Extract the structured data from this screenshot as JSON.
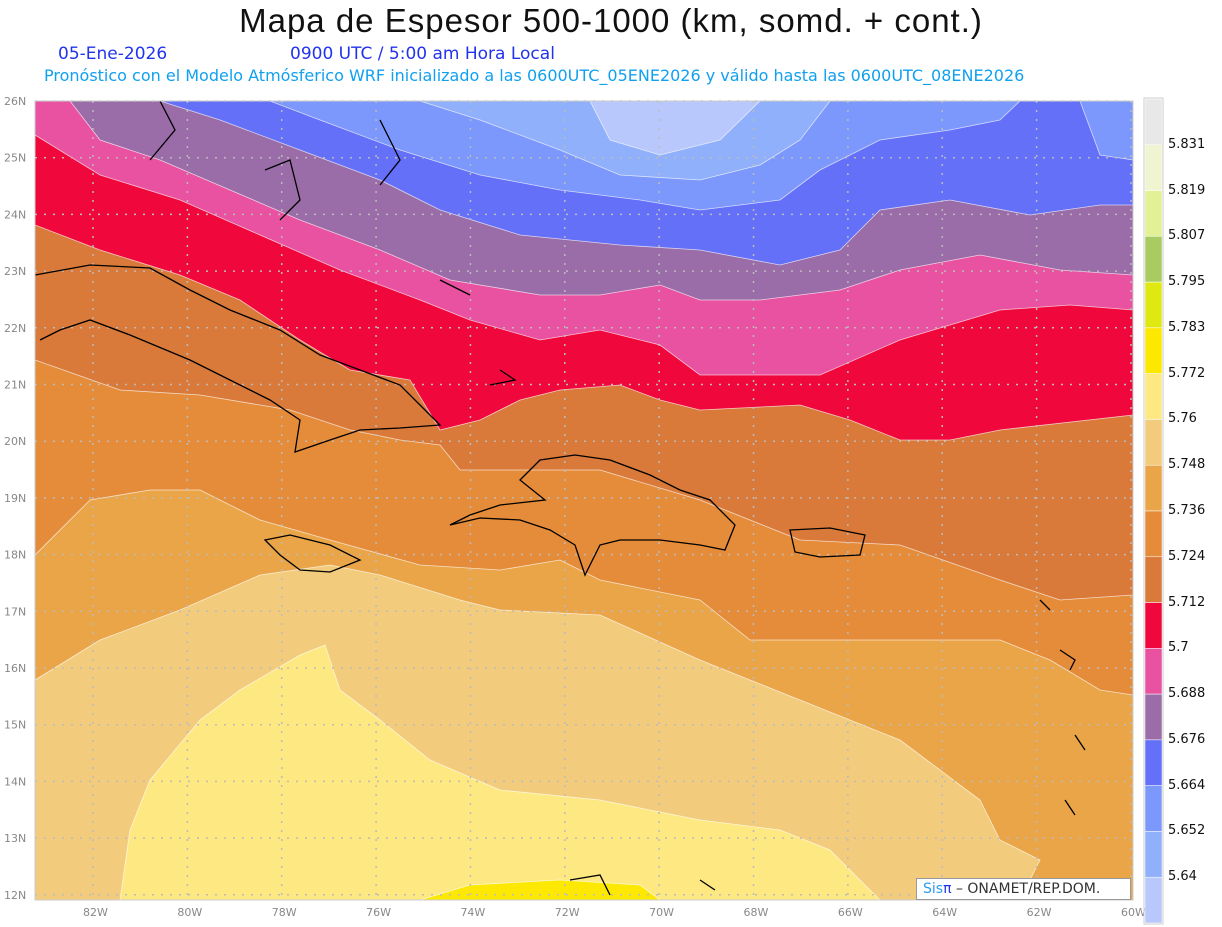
{
  "header": {
    "title": "Mapa de Espesor 500-1000 (km, somd. + cont.)",
    "date": "05-Ene-2026",
    "time": "0900 UTC / 5:00 am Hora Local",
    "info": "Pronóstico con el Modelo Atmósferico WRF inicializado a las 0600UTC_05ENE2026 y válido hasta las  0600UTC_08ENE2026"
  },
  "axes": {
    "lat_labels": [
      "26N",
      "25N",
      "24N",
      "23N",
      "22N",
      "21N",
      "20N",
      "19N",
      "18N",
      "17N",
      "16N",
      "15N",
      "14N",
      "13N",
      "12N"
    ],
    "lon_labels": [
      "82W",
      "80W",
      "78W",
      "76W",
      "74W",
      "72W",
      "70W",
      "68W",
      "66W",
      "64W",
      "62W",
      "60W"
    ]
  },
  "colorbar": {
    "labels": [
      "5.831",
      "5.819",
      "5.807",
      "5.795",
      "5.783",
      "5.772",
      "5.76",
      "5.748",
      "5.736",
      "5.724",
      "5.712",
      "5.7",
      "5.688",
      "5.676",
      "5.664",
      "5.652",
      "5.64"
    ],
    "colors": [
      "#e8e8e8",
      "#f0f4d0",
      "#e2f096",
      "#a8cc62",
      "#e0e812",
      "#fce800",
      "#fde882",
      "#f2cc7c",
      "#eaa548",
      "#e58c3a",
      "#d97a3a",
      "#f0083c",
      "#e852a0",
      "#9a6ca8",
      "#6470f8",
      "#7c98fc",
      "#90b0fc",
      "#b8c8fc"
    ]
  },
  "credit": {
    "brand_a": "Sis",
    "brand_b": "π",
    "text": " – ONAMET/REP.DOM."
  }
}
